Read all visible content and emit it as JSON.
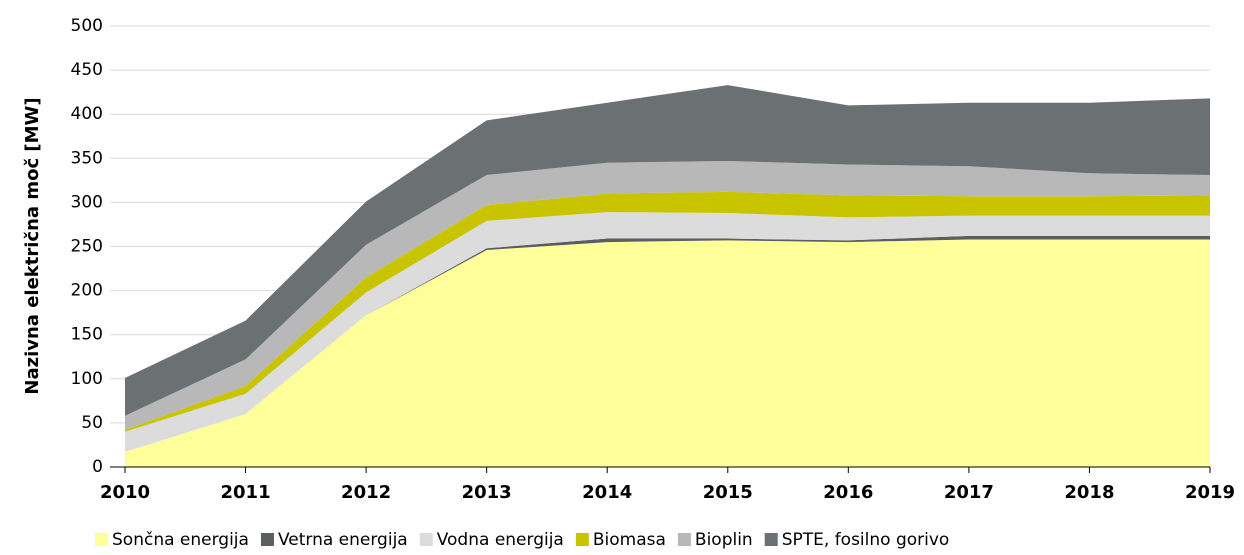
{
  "chart_data": {
    "type": "stacked_area",
    "y_label": "Nazivna električna moč [MW]",
    "categories": [
      "2010",
      "2011",
      "2012",
      "2013",
      "2014",
      "2015",
      "2016",
      "2017",
      "2018",
      "2019"
    ],
    "series": [
      {
        "name": "Sončna energija",
        "color": "#ffff99",
        "values": [
          17,
          60,
          172,
          246,
          255,
          257,
          255,
          258,
          258,
          258
        ]
      },
      {
        "name": "Vetrna energija",
        "color": "#5a5e60",
        "values": [
          0,
          0,
          0,
          2,
          4,
          2,
          2,
          4,
          4,
          4
        ]
      },
      {
        "name": "Vodna energija",
        "color": "#dcdcdc",
        "values": [
          23,
          23,
          26,
          31,
          30,
          29,
          26,
          23,
          23,
          23
        ]
      },
      {
        "name": "Biomasa",
        "color": "#c8c400",
        "values": [
          2,
          9,
          17,
          18,
          21,
          24,
          25,
          22,
          22,
          23
        ]
      },
      {
        "name": "Bioplin",
        "color": "#b8b8b8",
        "values": [
          16,
          30,
          37,
          34,
          35,
          35,
          35,
          34,
          26,
          23
        ]
      },
      {
        "name": "SPTE, fosilno gorivo",
        "color": "#6b7173",
        "values": [
          43,
          44,
          49,
          62,
          68,
          86,
          67,
          72,
          80,
          87
        ]
      }
    ],
    "ylim": [
      0,
      500
    ],
    "yticks": [
      0,
      50,
      100,
      150,
      200,
      250,
      300,
      350,
      400,
      450,
      500
    ],
    "grid": true
  }
}
